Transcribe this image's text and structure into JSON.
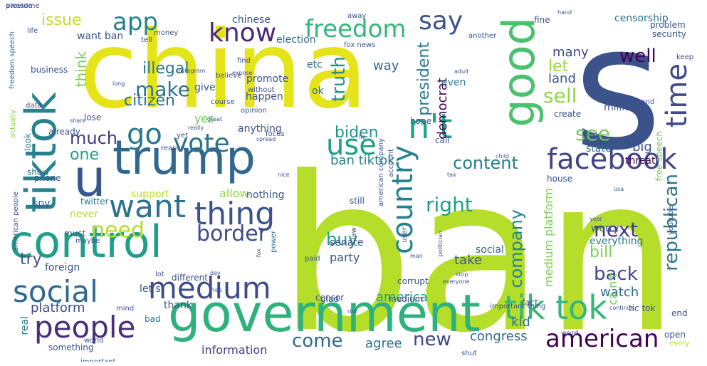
{
  "word_cloud": {
    "words": [
      {
        "text": "ban",
        "color": "#b5de2b"
      },
      {
        "text": "china",
        "color": "#e5e419"
      },
      {
        "text": "s",
        "color": "#3b528b"
      },
      {
        "text": "government",
        "color": "#2db27d"
      },
      {
        "text": "trump",
        "color": "#31688e"
      },
      {
        "text": "control",
        "color": "#1f9e89"
      },
      {
        "text": "tiktok",
        "color": "#26828e"
      },
      {
        "text": "good",
        "color": "#4ac16d"
      },
      {
        "text": "u",
        "color": "#39568c"
      },
      {
        "text": "facebook",
        "color": "#414487"
      },
      {
        "text": "tik tok",
        "color": "#35b779"
      },
      {
        "text": "people",
        "color": "#472d7b"
      },
      {
        "text": "medium",
        "color": "#3e4a89"
      },
      {
        "text": "social",
        "color": "#31688e"
      },
      {
        "text": "want",
        "color": "#2c728e"
      },
      {
        "text": "thing",
        "color": "#3b528b"
      },
      {
        "text": "vote",
        "color": "#2c728e"
      },
      {
        "text": "use",
        "color": "#1f9e89"
      },
      {
        "text": "n't",
        "color": "#20a486"
      },
      {
        "text": "country",
        "color": "#25838e"
      },
      {
        "text": "american",
        "color": "#440154"
      },
      {
        "text": "time",
        "color": "#3e4a89"
      },
      {
        "text": "freedom",
        "color": "#35b779"
      },
      {
        "text": "say",
        "color": "#3b528b"
      },
      {
        "text": "know",
        "color": "#482878"
      },
      {
        "text": "app",
        "color": "#26828e"
      },
      {
        "text": "go",
        "color": "#2a788e"
      },
      {
        "text": "need",
        "color": "#b5de2b"
      },
      {
        "text": "border",
        "color": "#3e4a89"
      },
      {
        "text": "make",
        "color": "#2c728e"
      },
      {
        "text": "much",
        "color": "#443983"
      },
      {
        "text": "content",
        "color": "#287d8e"
      },
      {
        "text": "company",
        "color": "#25838e"
      },
      {
        "text": "republican",
        "color": "#2c728e"
      },
      {
        "text": "right",
        "color": "#1f9e89"
      },
      {
        "text": "next",
        "color": "#443983"
      },
      {
        "text": "well",
        "color": "#440154"
      },
      {
        "text": "sell",
        "color": "#8fd744"
      },
      {
        "text": "see",
        "color": "#6ece58"
      },
      {
        "text": "back",
        "color": "#414487"
      },
      {
        "text": "biden",
        "color": "#21918c"
      },
      {
        "text": "buy",
        "color": "#1f9e89"
      },
      {
        "text": "come",
        "color": "#31688e"
      },
      {
        "text": "new",
        "color": "#414487"
      },
      {
        "text": "issue",
        "color": "#c2df23"
      },
      {
        "text": "truth",
        "color": "#21918c"
      },
      {
        "text": "think",
        "color": "#7ad151"
      },
      {
        "text": "one",
        "color": "#1f9e89"
      },
      {
        "text": "try",
        "color": "#3b528b"
      },
      {
        "text": "bill",
        "color": "#7ad151"
      },
      {
        "text": "let",
        "color": "#98d83e"
      },
      {
        "text": "citizen",
        "color": "#2c728e"
      },
      {
        "text": "illegal",
        "color": "#2a788e"
      },
      {
        "text": "ban tiktok",
        "color": "#26828e"
      },
      {
        "text": "president",
        "color": "#2a788e"
      },
      {
        "text": "land",
        "color": "#3b528b"
      },
      {
        "text": "many",
        "color": "#3e4a89"
      },
      {
        "text": "watch",
        "color": "#31688e"
      },
      {
        "text": "platform",
        "color": "#3e4a89"
      },
      {
        "text": "kid",
        "color": "#2c728e"
      },
      {
        "text": "congress",
        "color": "#31688e"
      },
      {
        "text": "agree",
        "color": "#2c728e"
      },
      {
        "text": "information",
        "color": "#443983"
      },
      {
        "text": "ca n't",
        "color": "#6ece58"
      },
      {
        "text": "america",
        "color": "#1f9e89"
      },
      {
        "text": "party",
        "color": "#3b528b"
      },
      {
        "text": "take",
        "color": "#3b528b"
      },
      {
        "text": "senate",
        "color": "#3b528b"
      },
      {
        "text": "social",
        "color": "#31688e"
      },
      {
        "text": "worry",
        "color": "#3b528b"
      },
      {
        "text": "everything",
        "color": "#2a788e"
      },
      {
        "text": "medium platform",
        "color": "#7ad151"
      },
      {
        "text": "big",
        "color": "#3b528b"
      },
      {
        "text": "threat",
        "color": "#440154"
      },
      {
        "text": "state",
        "color": "#31688e"
      },
      {
        "text": "democrat",
        "color": "#440154"
      },
      {
        "text": "million",
        "color": "#3b528b"
      },
      {
        "text": "even",
        "color": "#2a788e"
      },
      {
        "text": "way",
        "color": "#31688e"
      },
      {
        "text": "etc",
        "color": "#2c728e"
      },
      {
        "text": "ok",
        "color": "#31688e"
      },
      {
        "text": "happen",
        "color": "#3b528b"
      },
      {
        "text": "give",
        "color": "#3b528b"
      },
      {
        "text": "promote",
        "color": "#3b528b"
      },
      {
        "text": "chinese",
        "color": "#3b528b"
      },
      {
        "text": "election",
        "color": "#31688e"
      },
      {
        "text": "censorship",
        "color": "#2c728e"
      },
      {
        "text": "problem",
        "color": "#3b528b"
      },
      {
        "text": "security",
        "color": "#3b528b"
      },
      {
        "text": "fine",
        "color": "#3b528b"
      },
      {
        "text": "want ban",
        "color": "#3b528b"
      },
      {
        "text": "yes",
        "color": "#6ece58"
      },
      {
        "text": "anything",
        "color": "#3b528b"
      },
      {
        "text": "allow",
        "color": "#8fd744"
      },
      {
        "text": "support",
        "color": "#b5de2b"
      },
      {
        "text": "nothing",
        "color": "#3b528b"
      },
      {
        "text": "spy",
        "color": "#3b528b"
      },
      {
        "text": "never",
        "color": "#b5de2b"
      },
      {
        "text": "show",
        "color": "#2c728e"
      },
      {
        "text": "look",
        "color": "#2a788e"
      },
      {
        "text": "real",
        "color": "#2a788e"
      },
      {
        "text": "foreign",
        "color": "#3b528b"
      },
      {
        "text": "let s",
        "color": "#3b528b"
      },
      {
        "text": "thank",
        "color": "#3b528b"
      },
      {
        "text": "censor",
        "color": "#3b528b"
      },
      {
        "text": "free speech",
        "color": "#6ece58"
      },
      {
        "text": "bad",
        "color": "#2c728e"
      },
      {
        "text": "twitter",
        "color": "#2a788e"
      },
      {
        "text": "phone",
        "color": "#3b528b"
      },
      {
        "text": "something",
        "color": "#3b528b"
      },
      {
        "text": "house",
        "color": "#3b528b"
      },
      {
        "text": "tic tok",
        "color": "#3b528b"
      },
      {
        "text": "open",
        "color": "#3b528b"
      },
      {
        "text": "every",
        "color": "#b5de2b"
      },
      {
        "text": "word",
        "color": "#3b528b"
      },
      {
        "text": "end",
        "color": "#3b528b"
      },
      {
        "text": "fact",
        "color": "#3b528b"
      },
      {
        "text": "corrupt",
        "color": "#3b528b"
      },
      {
        "text": "medium",
        "color": "#3b528b"
      },
      {
        "text": "glad",
        "color": "#3b528b"
      },
      {
        "text": "different",
        "color": "#3b528b"
      },
      {
        "text": "power",
        "color": "#2c728e"
      },
      {
        "text": "must",
        "color": "#3b528b"
      },
      {
        "text": "maybe",
        "color": "#3b528b"
      },
      {
        "text": "lot",
        "color": "#3b528b"
      },
      {
        "text": "law",
        "color": "#3b528b"
      },
      {
        "text": "still",
        "color": "#3b528b"
      },
      {
        "text": "paid",
        "color": "#3b528b"
      },
      {
        "text": "user",
        "color": "#3b528b"
      },
      {
        "text": "work",
        "color": "#3b528b"
      },
      {
        "text": "focus",
        "color": "#3b528b"
      },
      {
        "text": "reason",
        "color": "#3b528b"
      },
      {
        "text": "call",
        "color": "#3b528b"
      },
      {
        "text": "hope",
        "color": "#3b528b"
      },
      {
        "text": "account",
        "color": "#3b528b"
      },
      {
        "text": "american company",
        "color": "#3b528b"
      },
      {
        "text": "create",
        "color": "#3b528b"
      },
      {
        "text": "course",
        "color": "#3b528b"
      },
      {
        "text": "opinion",
        "color": "#3b528b"
      },
      {
        "text": "without",
        "color": "#3b528b"
      },
      {
        "text": "believe",
        "color": "#3b528b"
      },
      {
        "text": "find",
        "color": "#3b528b"
      },
      {
        "text": "business",
        "color": "#3b528b"
      },
      {
        "text": "data",
        "color": "#3b528b"
      },
      {
        "text": "life",
        "color": "#3b528b"
      },
      {
        "text": "money",
        "color": "#3b528b"
      },
      {
        "text": "tell",
        "color": "#3b528b"
      },
      {
        "text": "fox news",
        "color": "#3b528b"
      },
      {
        "text": "away",
        "color": "#3b528b"
      },
      {
        "text": "another",
        "color": "#3b528b"
      },
      {
        "text": "keep",
        "color": "#3b528b"
      },
      {
        "text": "lose",
        "color": "#3b528b"
      },
      {
        "text": "already",
        "color": "#3b528b"
      },
      {
        "text": "yet",
        "color": "#3b528b"
      },
      {
        "text": "world",
        "color": "#3b528b"
      },
      {
        "text": "important",
        "color": "#3b528b"
      },
      {
        "text": "mind",
        "color": "#3b528b"
      },
      {
        "text": "risk",
        "color": "#3b528b"
      },
      {
        "text": "shut",
        "color": "#3b528b"
      },
      {
        "text": "important thing",
        "color": "#3b528b"
      },
      {
        "text": "actually",
        "color": "#8fd744"
      },
      {
        "text": "freedom speech",
        "color": "#2c728e"
      },
      {
        "text": "american people",
        "color": "#3b528b"
      },
      {
        "text": "instagram",
        "color": "#3b528b"
      },
      {
        "text": "understand",
        "color": "#3b528b"
      },
      {
        "text": "youtube",
        "color": "#3b528b"
      },
      {
        "text": "year",
        "color": "#3b528b"
      },
      {
        "text": "share",
        "color": "#3b528b"
      },
      {
        "text": "really",
        "color": "#3b528b"
      },
      {
        "text": "great",
        "color": "#3b528b"
      },
      {
        "text": "long",
        "color": "#3b528b"
      },
      {
        "text": "hand",
        "color": "#3b528b"
      },
      {
        "text": "tax",
        "color": "#3b528b"
      },
      {
        "text": "nice",
        "color": "#3b528b"
      },
      {
        "text": "child",
        "color": "#3b528b"
      },
      {
        "text": "politician",
        "color": "#3b528b"
      },
      {
        "text": "everyone",
        "color": "#3b528b"
      },
      {
        "text": "man",
        "color": "#3b528b"
      },
      {
        "text": "day",
        "color": "#3b528b"
      },
      {
        "text": "stop",
        "color": "#3b528b"
      },
      {
        "text": "free",
        "color": "#3b528b"
      },
      {
        "text": "expose",
        "color": "#3b528b"
      },
      {
        "text": "spread",
        "color": "#3b528b"
      },
      {
        "text": "lie",
        "color": "#3b528b"
      },
      {
        "text": "fox",
        "color": "#3b528b"
      },
      {
        "text": "usa",
        "color": "#3b528b"
      },
      {
        "text": "adult",
        "color": "#3b528b"
      },
      {
        "text": "continue",
        "color": "#3b528b"
      },
      {
        "text": "provide",
        "color": "#3b528b"
      },
      {
        "text": "awesome",
        "color": "#3b528b"
      }
    ]
  }
}
